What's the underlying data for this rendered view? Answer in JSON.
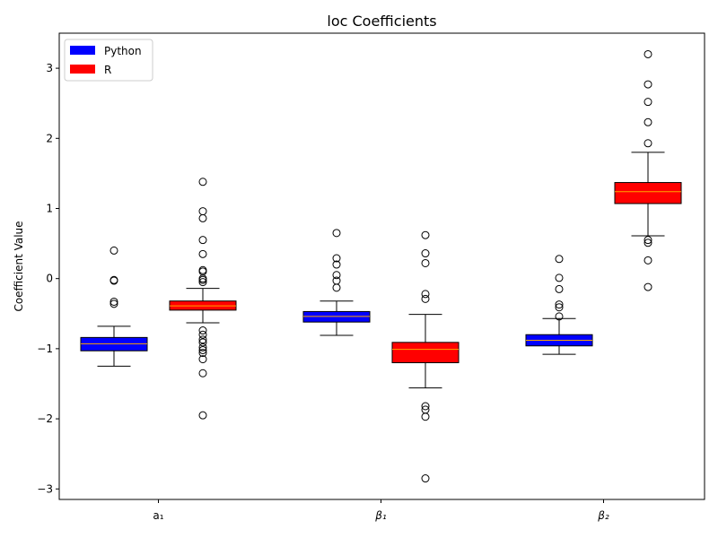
{
  "chart_data": {
    "type": "boxplot",
    "title": "loc Coefficients",
    "xlabel": "",
    "ylabel": "Coefficient Value",
    "ylim": [
      -3.15,
      3.5
    ],
    "yticks": [
      -3,
      -2,
      -1,
      0,
      1,
      2,
      3
    ],
    "ytick_labels": [
      "−3",
      "−2",
      "−1",
      "0",
      "1",
      "2",
      "3"
    ],
    "categories": [
      "a₁",
      "β₁",
      "β₂"
    ],
    "legend": {
      "position": "top-left"
    },
    "colors": {
      "Python": "#0000ff",
      "R": "#ff0000",
      "median": "#ffa500"
    },
    "series": [
      {
        "name": "Python",
        "boxes": [
          {
            "category": "a₁",
            "q1": -1.03,
            "median": -0.93,
            "q3": -0.84,
            "whisker_low": -1.25,
            "whisker_high": -0.68,
            "outliers": [
              0.4,
              -0.02,
              -0.03,
              -0.33,
              -0.36
            ]
          },
          {
            "category": "β₁",
            "q1": -0.62,
            "median": -0.54,
            "q3": -0.47,
            "whisker_low": -0.81,
            "whisker_high": -0.32,
            "outliers": [
              0.65,
              0.29,
              0.2,
              0.05,
              -0.03,
              -0.13
            ]
          },
          {
            "category": "β₂",
            "q1": -0.96,
            "median": -0.88,
            "q3": -0.8,
            "whisker_low": -1.08,
            "whisker_high": -0.57,
            "outliers": [
              0.28,
              0.01,
              -0.15,
              -0.37,
              -0.41,
              -0.54
            ]
          }
        ]
      },
      {
        "name": "R",
        "boxes": [
          {
            "category": "a₁",
            "q1": -0.45,
            "median": -0.39,
            "q3": -0.32,
            "whisker_low": -0.63,
            "whisker_high": -0.14,
            "outliers": [
              1.38,
              0.96,
              0.86,
              0.55,
              0.35,
              0.12,
              0.1,
              0.0,
              -0.02,
              -0.05,
              -0.74,
              -0.8,
              -0.87,
              -0.91,
              -0.98,
              -1.02,
              -1.06,
              -1.15,
              -1.35,
              -1.95
            ]
          },
          {
            "category": "β₁",
            "q1": -1.2,
            "median": -1.01,
            "q3": -0.91,
            "whisker_low": -1.56,
            "whisker_high": -0.51,
            "outliers": [
              0.62,
              0.36,
              0.22,
              -0.22,
              -0.29,
              -1.82,
              -1.87,
              -1.97,
              -2.85
            ]
          },
          {
            "category": "β₂",
            "q1": 1.07,
            "median": 1.24,
            "q3": 1.37,
            "whisker_low": 0.61,
            "whisker_high": 1.8,
            "outliers": [
              3.2,
              2.77,
              2.52,
              2.23,
              1.93,
              0.55,
              0.51,
              0.26,
              -0.12
            ]
          }
        ]
      }
    ]
  }
}
